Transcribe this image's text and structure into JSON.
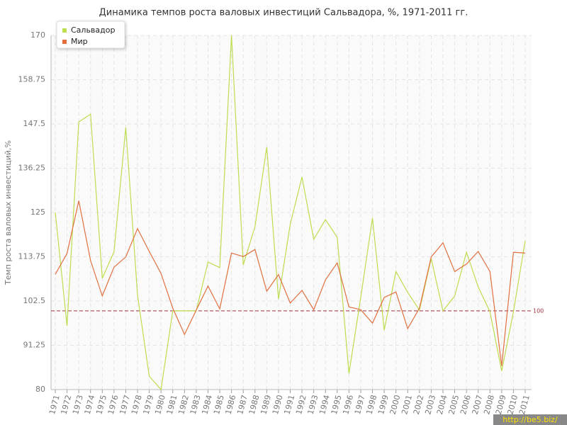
{
  "chart_data": {
    "type": "line",
    "title": "Динамика темпов роста валовых инвестиций Сальвадора, %, 1971-2011 гг.",
    "y_label": "Темп роста валовых инвестиций,%",
    "categories": [
      "1971",
      "1972",
      "1973",
      "1974",
      "1975",
      "1976",
      "1977",
      "1978",
      "1979",
      "1980",
      "1981",
      "1982",
      "1983",
      "1984",
      "1985",
      "1986",
      "1987",
      "1988",
      "1989",
      "1990",
      "1991",
      "1992",
      "1993",
      "1994",
      "1995",
      "1996",
      "1997",
      "1998",
      "1999",
      "2000",
      "2001",
      "2002",
      "2003",
      "2004",
      "2005",
      "2006",
      "2007",
      "2008",
      "2009",
      "2010",
      "2011"
    ],
    "series": [
      {
        "name": "Сальвадор",
        "color": "#bedd4e",
        "values": [
          125,
          96.2,
          148,
          150,
          108.3,
          115,
          146.6,
          104,
          83.4,
          80,
          100,
          100,
          100,
          112.4,
          111,
          170,
          111.7,
          121.4,
          141.6,
          103,
          122,
          134,
          118.2,
          123.2,
          118.7,
          84.1,
          103.4,
          123.6,
          95.1,
          110,
          104.7,
          100.2,
          113.3,
          100,
          103.8,
          114.9,
          106.1,
          99.8,
          84.7,
          99.8,
          117.8
        ]
      },
      {
        "name": "Мир",
        "color": "#e0703f",
        "values": [
          109.3,
          114.6,
          128,
          112.8,
          103.8,
          111.1,
          113.7,
          120.9,
          115.1,
          109.5,
          100.7,
          94,
          100.2,
          106.3,
          100.5,
          114.7,
          113.8,
          115.6,
          105,
          109.2,
          102,
          105.2,
          100.3,
          107.9,
          112.2,
          101,
          100.3,
          96.9,
          103.4,
          104.8,
          95.5,
          100.7,
          113.7,
          117.3,
          110,
          111.9,
          115.1,
          110,
          86,
          114.9,
          114.7
        ]
      }
    ],
    "ylim": [
      80,
      170
    ],
    "yticks": [
      80,
      91.25,
      102.5,
      113.75,
      125,
      136.25,
      147.5,
      158.75,
      170
    ],
    "reference_line": 100,
    "reference_color": "#a03040",
    "grid": true,
    "legend": "top-left",
    "watermark": "http://be5.biz/"
  }
}
